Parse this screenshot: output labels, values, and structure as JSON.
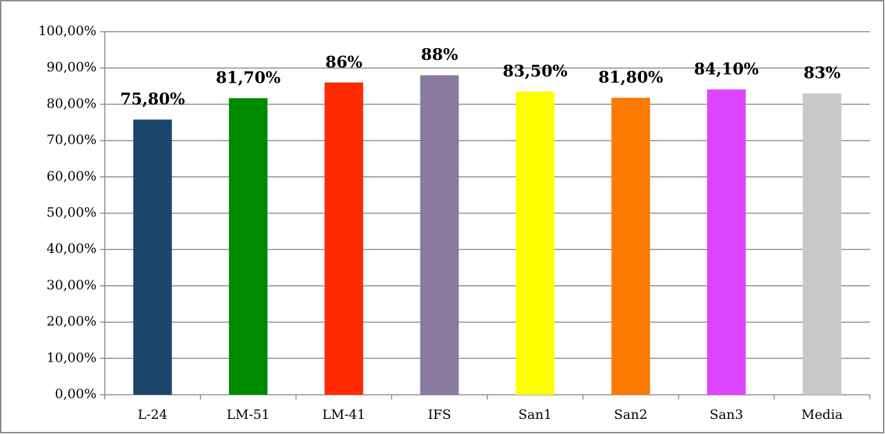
{
  "chart_data": {
    "type": "bar",
    "categories": [
      "L-24",
      "LM-51",
      "LM-41",
      "IFS",
      "San1",
      "San2",
      "San3",
      "Media"
    ],
    "values": [
      75.8,
      81.7,
      86,
      88,
      83.5,
      81.8,
      84.1,
      83
    ],
    "value_labels": [
      "75,80%",
      "81,70%",
      "86%",
      "88%",
      "83,50%",
      "81,80%",
      "84,10%",
      "83%"
    ],
    "colors": [
      "#1b456b",
      "#008a00",
      "#ff2a00",
      "#8b7aa0",
      "#ffff00",
      "#ff7a00",
      "#dd44ff",
      "#c8c8c8"
    ],
    "ylim": [
      0,
      100
    ],
    "yticks": [
      {
        "value": 0,
        "label": "0,00%"
      },
      {
        "value": 10,
        "label": "10,00%"
      },
      {
        "value": 20,
        "label": "20,00%"
      },
      {
        "value": 30,
        "label": "30,00%"
      },
      {
        "value": 40,
        "label": "40,00%"
      },
      {
        "value": 50,
        "label": "50,00%"
      },
      {
        "value": 60,
        "label": "60,00%"
      },
      {
        "value": 70,
        "label": "70,00%"
      },
      {
        "value": 80,
        "label": "80,00%"
      },
      {
        "value": 90,
        "label": "90,00%"
      },
      {
        "value": 100,
        "label": "100,00%"
      }
    ],
    "grid": true
  }
}
